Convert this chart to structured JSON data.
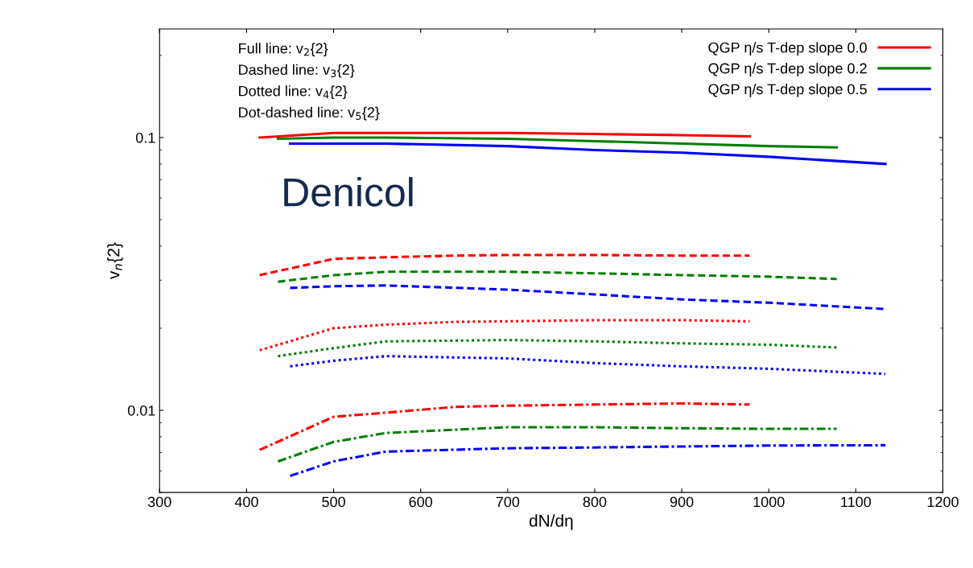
{
  "chart_data": {
    "type": "line",
    "xlabel": "dN/dη",
    "ylabel": "v$_{n}${2}",
    "annotations": [
      "Full line: v$_{2}${2}",
      "Dashed line: v$_{3}${2}",
      "Dotted line: v$_{4}${2}",
      "Dot-dashed line: v$_{5}${2}",
      "Denicol"
    ],
    "xlim": [
      300,
      1200
    ],
    "xticks": [
      300,
      400,
      500,
      600,
      700,
      800,
      900,
      1000,
      1100,
      1200
    ],
    "ylim": [
      0.005,
      0.25
    ],
    "yticks": [
      0.01,
      0.1
    ],
    "log": "y",
    "grid": false,
    "legend": "top right",
    "marker": "none",
    "series": [
      {
        "name": "QGP η/s T-dep slope 0.0",
        "color": "#ff0000",
        "line_style": "solid",
        "x": [
          415,
          500,
          560,
          640,
          700,
          800,
          900,
          978
        ],
        "values": [
          0.1,
          0.104,
          0.104,
          0.104,
          0.104,
          0.103,
          0.102,
          0.101
        ]
      },
      {
        "name": "QGP η/s T-dep slope 0.2",
        "color": "#008000",
        "line_style": "solid",
        "x": [
          436,
          500,
          560,
          700,
          800,
          900,
          1000,
          1078
        ],
        "values": [
          0.099,
          0.1,
          0.1,
          0.099,
          0.097,
          0.095,
          0.093,
          0.092
        ]
      },
      {
        "name": "QGP η/s T-dep slope 0.5",
        "color": "#0000ff",
        "line_style": "solid",
        "x": [
          450,
          500,
          560,
          700,
          800,
          900,
          1000,
          1134
        ],
        "values": [
          0.095,
          0.095,
          0.095,
          0.093,
          0.09,
          0.088,
          0.085,
          0.08
        ]
      },
      {
        "color": "#ff0000",
        "line_style": "dashed",
        "x": [
          415,
          500,
          560,
          640,
          700,
          800,
          900,
          978
        ],
        "values": [
          0.0313,
          0.0359,
          0.0364,
          0.0369,
          0.0371,
          0.0371,
          0.0369,
          0.0369
        ]
      },
      {
        "color": "#008000",
        "line_style": "dashed",
        "x": [
          436,
          500,
          560,
          700,
          800,
          900,
          1000,
          1078
        ],
        "values": [
          0.0296,
          0.0313,
          0.0322,
          0.0322,
          0.0318,
          0.0313,
          0.0309,
          0.0303
        ]
      },
      {
        "color": "#0000ff",
        "line_style": "dashed",
        "x": [
          450,
          500,
          560,
          700,
          800,
          900,
          1000,
          1134
        ],
        "values": [
          0.0281,
          0.0285,
          0.0287,
          0.0277,
          0.0266,
          0.0255,
          0.0248,
          0.0235
        ]
      },
      {
        "color": "#ff0000",
        "line_style": "dotted",
        "x": [
          415,
          500,
          560,
          640,
          700,
          800,
          900,
          978
        ],
        "values": [
          0.0166,
          0.02,
          0.0206,
          0.0211,
          0.0212,
          0.0214,
          0.0214,
          0.0212
        ]
      },
      {
        "color": "#008000",
        "line_style": "dotted",
        "x": [
          436,
          500,
          560,
          700,
          800,
          900,
          1000,
          1078
        ],
        "values": [
          0.0158,
          0.0169,
          0.0179,
          0.0181,
          0.0179,
          0.0176,
          0.0174,
          0.017
        ]
      },
      {
        "color": "#0000ff",
        "line_style": "dotted",
        "x": [
          450,
          500,
          560,
          700,
          800,
          900,
          1000,
          1134
        ],
        "values": [
          0.0145,
          0.0152,
          0.0158,
          0.0155,
          0.0149,
          0.0145,
          0.0142,
          0.0136
        ]
      },
      {
        "color": "#ff0000",
        "line_style": "dashdot",
        "x": [
          415,
          500,
          560,
          640,
          700,
          800,
          900,
          978
        ],
        "values": [
          0.00716,
          0.00947,
          0.0098,
          0.0103,
          0.0104,
          0.0105,
          0.0106,
          0.0105
        ]
      },
      {
        "color": "#008000",
        "line_style": "dashdot",
        "x": [
          436,
          500,
          560,
          700,
          800,
          900,
          1000,
          1078
        ],
        "values": [
          0.0065,
          0.00766,
          0.00826,
          0.00867,
          0.00867,
          0.0086,
          0.00855,
          0.00855
        ]
      },
      {
        "color": "#0000ff",
        "line_style": "dashdot",
        "x": [
          450,
          500,
          560,
          700,
          800,
          900,
          1000,
          1134
        ],
        "values": [
          0.00575,
          0.0065,
          0.00706,
          0.00726,
          0.00731,
          0.00737,
          0.00743,
          0.00745
        ]
      }
    ]
  }
}
